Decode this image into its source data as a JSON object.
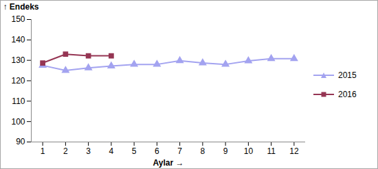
{
  "chart_data": {
    "type": "line",
    "x_label": "Aylar",
    "y_label": "Endeks",
    "x": [
      1,
      2,
      3,
      4,
      5,
      6,
      7,
      8,
      9,
      10,
      11,
      12
    ],
    "xlim": [
      0.5,
      12.5
    ],
    "xticks": [
      1,
      2,
      3,
      4,
      5,
      6,
      7,
      8,
      9,
      10,
      11,
      12
    ],
    "ylim": [
      90,
      150
    ],
    "yticks": [
      90,
      100,
      110,
      120,
      130,
      140,
      150
    ],
    "grid": false,
    "legend": "right",
    "series": [
      {
        "name": "2015",
        "color": "#a3a3f0",
        "marker": "triangle",
        "values": [
          127.5,
          125,
          126.3,
          127.2,
          128,
          128,
          129.8,
          128.7,
          128,
          129.7,
          130.8,
          130.8
        ]
      },
      {
        "name": "2016",
        "color": "#953553",
        "marker": "square",
        "values": [
          128.7,
          133,
          132.2,
          132.2,
          null,
          null,
          null,
          null,
          null,
          null,
          null,
          null
        ]
      }
    ]
  }
}
